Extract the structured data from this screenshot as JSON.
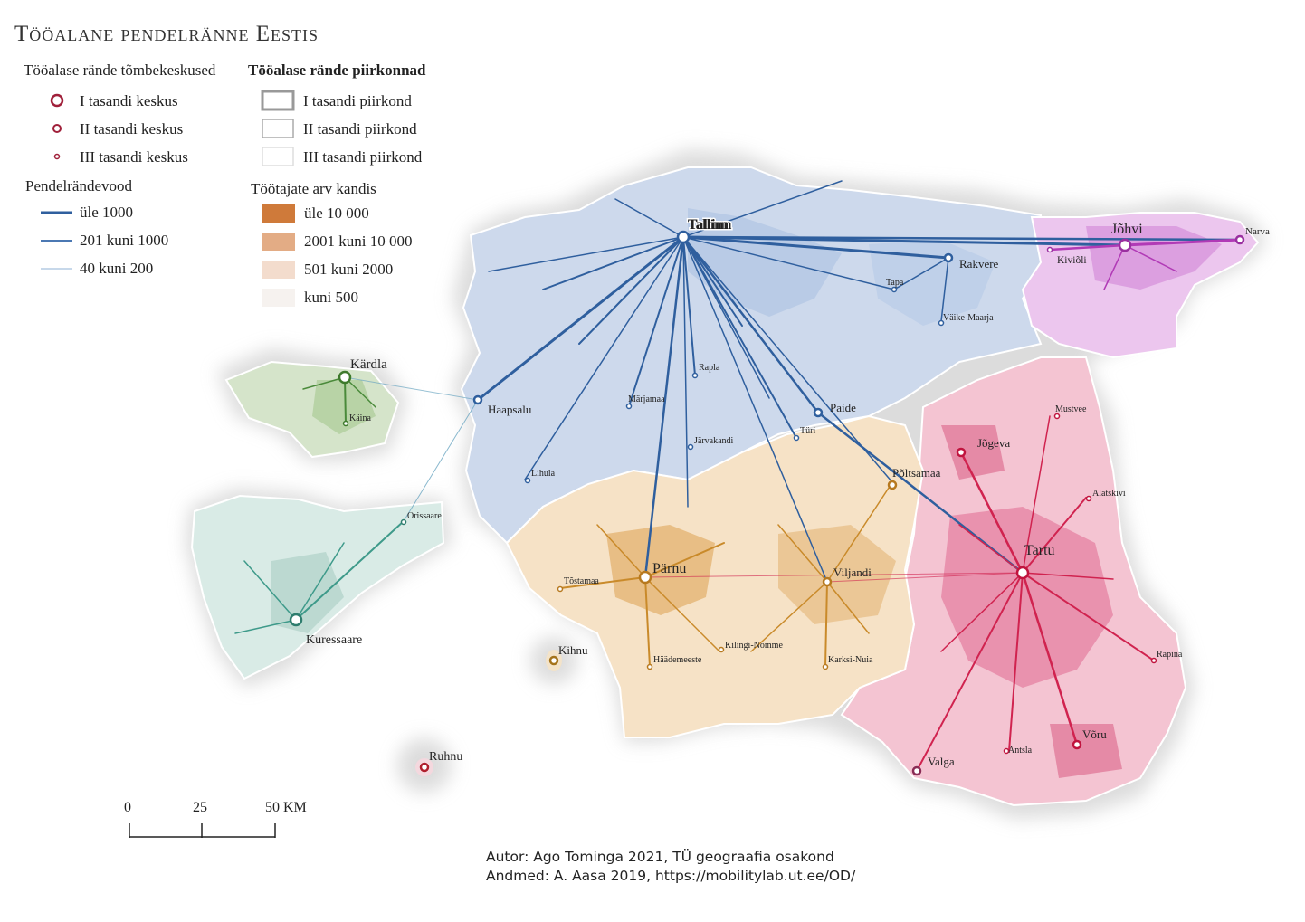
{
  "title": "Tööalane pendelränne Eestis",
  "legend": {
    "centers_heading": "Tööalase rände tõmbekeskused",
    "centers": [
      "I tasandi keskus",
      "II tasandi keskus",
      "III tasandi keskus"
    ],
    "flows_heading": "Pendelrändevood",
    "flows": [
      "üle 1000",
      "201 kuni 1000",
      "40 kuni 200"
    ],
    "regions_heading": "Tööalase rände piirkonnad",
    "regions": [
      "I tasandi piirkond",
      "II tasandi piirkond",
      "III tasandi piirkond"
    ],
    "workers_heading": "Töötajate arv kandis",
    "workers": [
      "üle 10 000",
      "2001 kuni 10 000",
      "501 kuni 2000",
      "kuni 500"
    ]
  },
  "colors": {
    "center_ring": "#a0203a",
    "flow": "#2f5f9e",
    "workers": [
      "#cf7a3a",
      "#e3ac85",
      "#f3dccd",
      "#f6f2ef"
    ],
    "tallinn_region": "#c9d8ee",
    "tartu_region": "#f2b8ca",
    "johvi_region": "#e8b3ea",
    "parnu_region": "#f4dcb8",
    "kuressaare_region": "#cfe3de",
    "kardla_region": "#cfe0c3"
  },
  "places": {
    "tallinn": "Tallinn",
    "tartu": "Tartu",
    "parnu": "Pärnu",
    "johvi": "Jõhvi",
    "narva": "Narva",
    "kivioli": "Kiviõli",
    "rakvere": "Rakvere",
    "tapa": "Tapa",
    "vaike_maarja": "Väike-Maarja",
    "rapla": "Rapla",
    "marjamaa": "Märjamaa",
    "haapsalu": "Haapsalu",
    "kardla": "Kärdla",
    "kaina": "Käina",
    "paide": "Paide",
    "turi": "Türi",
    "jarvakandi": "Järvakandi",
    "lihula": "Lihula",
    "orissaare": "Orissaare",
    "kuressaare": "Kuressaare",
    "poltsamaa": "Põltsamaa",
    "jogeva": "Jõgeva",
    "mustvee": "Mustvee",
    "alatskivi": "Alatskivi",
    "tostamaa": "Tõstamaa",
    "viljandi": "Viljandi",
    "kihnu": "Kihnu",
    "haademeeste": "Häädemeeste",
    "kilingi_nomme": "Kilingi-Nõmme",
    "karksi_nuia": "Karksi-Nuia",
    "rapina": "Räpina",
    "voru": "Võru",
    "antsla": "Antsla",
    "valga": "Valga",
    "ruhnu": "Ruhnu"
  },
  "scale": {
    "labels": [
      "0",
      "25",
      "50 KM"
    ]
  },
  "credits": {
    "author": "Autor: Ago Tominga 2021, TÜ geograafia osakond",
    "data": "Andmed: A. Aasa 2019, https://mobilitylab.ut.ee/OD/"
  }
}
